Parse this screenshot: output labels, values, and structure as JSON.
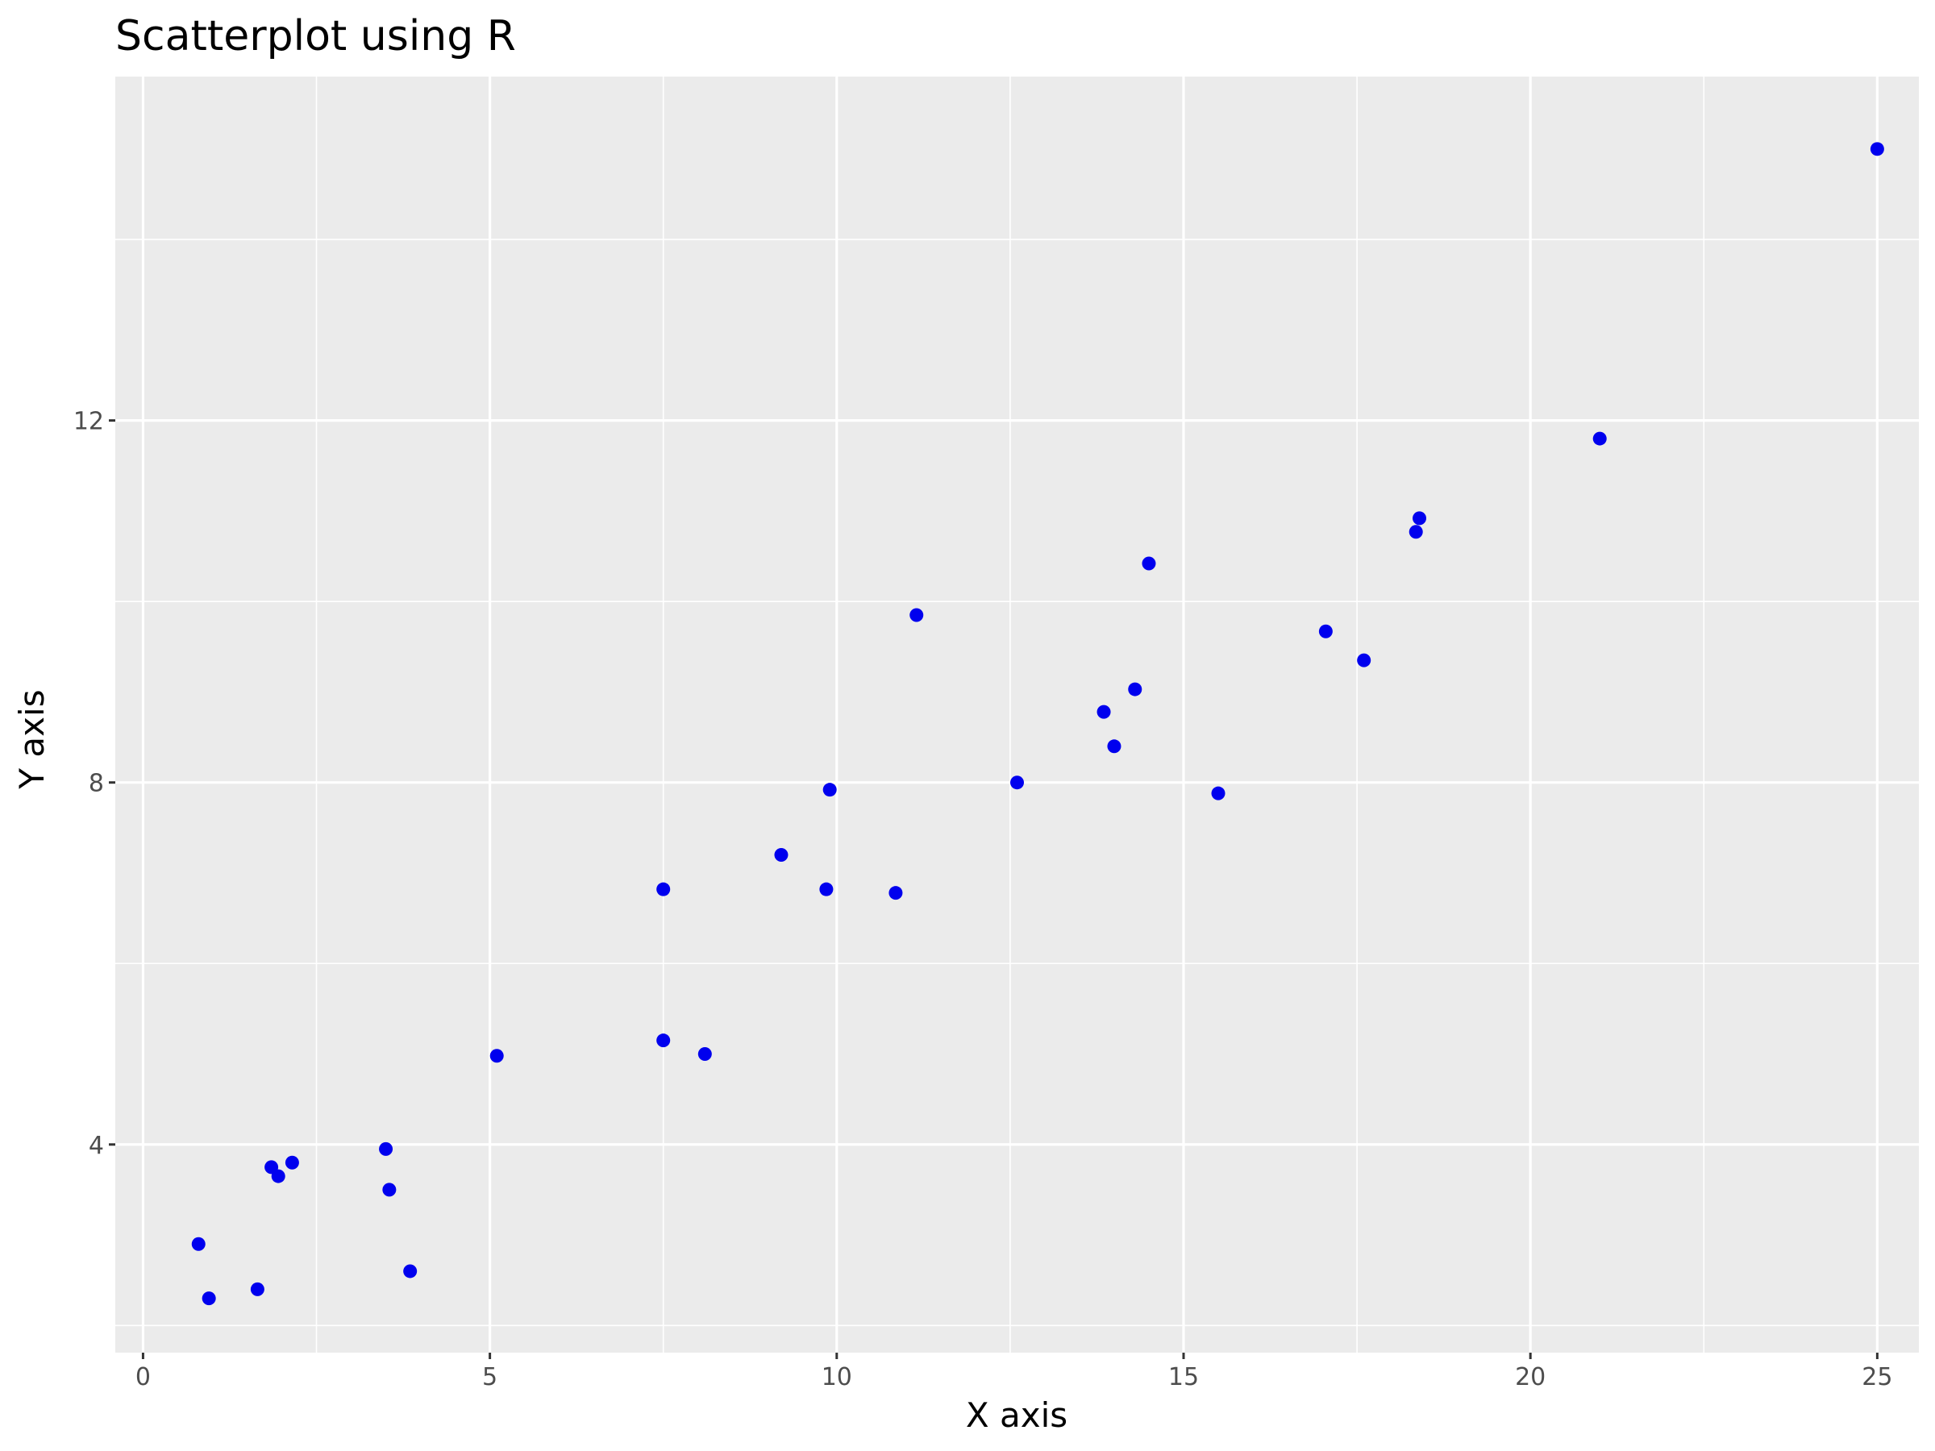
{
  "chart_data": {
    "type": "scatter",
    "title": "Scatterplot using R",
    "xlabel": "X axis",
    "ylabel": "Y axis",
    "xlim": [
      -0.4,
      25.6
    ],
    "ylim": [
      1.7,
      15.8
    ],
    "x_ticks": [
      0,
      5,
      10,
      15,
      20,
      25
    ],
    "y_ticks": [
      4,
      8,
      12
    ],
    "grid": true,
    "point_color": "#0000ee",
    "panel_color": "#ebebeb",
    "grid_color": "#ffffff",
    "points": [
      {
        "x": 0.8,
        "y": 2.9
      },
      {
        "x": 0.95,
        "y": 2.3
      },
      {
        "x": 1.65,
        "y": 2.4
      },
      {
        "x": 1.85,
        "y": 3.75
      },
      {
        "x": 1.95,
        "y": 3.65
      },
      {
        "x": 2.15,
        "y": 3.8
      },
      {
        "x": 3.5,
        "y": 3.95
      },
      {
        "x": 3.55,
        "y": 3.5
      },
      {
        "x": 3.85,
        "y": 2.6
      },
      {
        "x": 5.1,
        "y": 4.98
      },
      {
        "x": 7.5,
        "y": 5.15
      },
      {
        "x": 7.5,
        "y": 6.82
      },
      {
        "x": 8.1,
        "y": 5.0
      },
      {
        "x": 9.2,
        "y": 7.2
      },
      {
        "x": 9.85,
        "y": 6.82
      },
      {
        "x": 9.9,
        "y": 7.92
      },
      {
        "x": 10.85,
        "y": 6.78
      },
      {
        "x": 11.15,
        "y": 9.85
      },
      {
        "x": 12.6,
        "y": 8.0
      },
      {
        "x": 13.85,
        "y": 8.78
      },
      {
        "x": 14.0,
        "y": 8.4
      },
      {
        "x": 14.3,
        "y": 9.03
      },
      {
        "x": 14.5,
        "y": 10.42
      },
      {
        "x": 15.5,
        "y": 7.88
      },
      {
        "x": 17.05,
        "y": 9.67
      },
      {
        "x": 17.6,
        "y": 9.35
      },
      {
        "x": 18.35,
        "y": 10.77
      },
      {
        "x": 18.4,
        "y": 10.92
      },
      {
        "x": 21.0,
        "y": 11.8
      },
      {
        "x": 25.0,
        "y": 15.0
      }
    ]
  }
}
